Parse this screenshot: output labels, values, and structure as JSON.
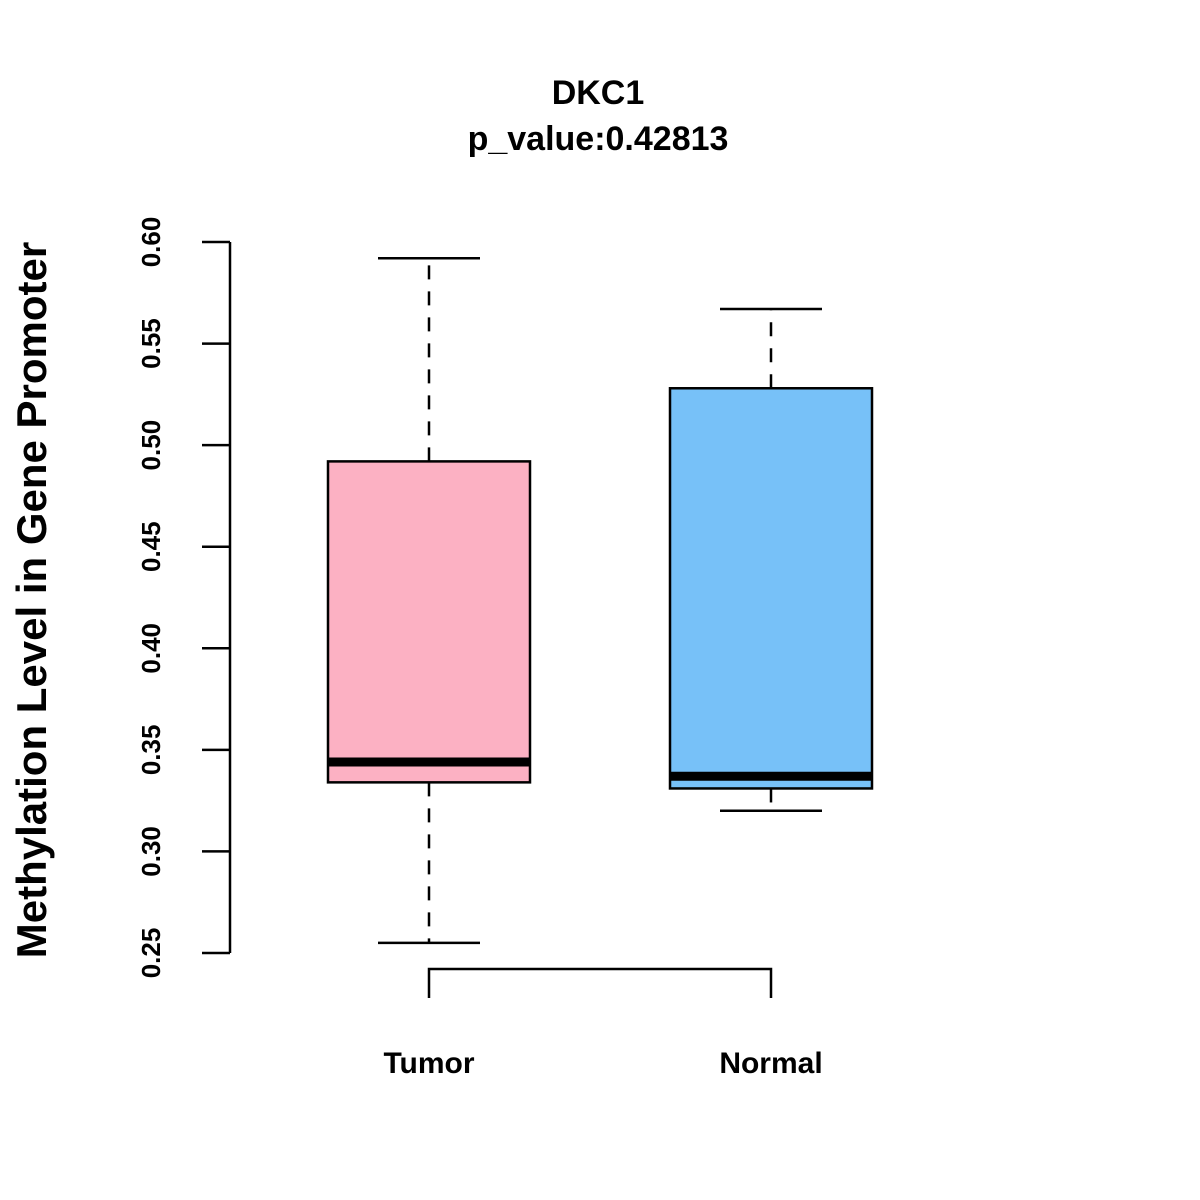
{
  "chart_data": {
    "type": "box",
    "title": "DKC1",
    "subtitle": "p_value:0.42813",
    "xlabel": "",
    "ylabel": "Methylation Level in Gene Promoter",
    "ylim": [
      0.25,
      0.6
    ],
    "yticks": [
      0.25,
      0.3,
      0.35,
      0.4,
      0.45,
      0.5,
      0.55,
      0.6
    ],
    "ytick_labels": [
      "0.25",
      "0.30",
      "0.35",
      "0.40",
      "0.45",
      "0.50",
      "0.55",
      "0.60"
    ],
    "categories": [
      "Tumor",
      "Normal"
    ],
    "boxes": [
      {
        "name": "Tumor",
        "whisker_low": 0.255,
        "q1": 0.334,
        "median": 0.344,
        "q3": 0.492,
        "whisker_high": 0.592,
        "color": "#FCB1C3"
      },
      {
        "name": "Normal",
        "whisker_low": 0.32,
        "q1": 0.331,
        "median": 0.337,
        "q3": 0.528,
        "whisker_high": 0.567,
        "color": "#77C1F8"
      }
    ],
    "grid": false,
    "significance_bracket": true
  }
}
